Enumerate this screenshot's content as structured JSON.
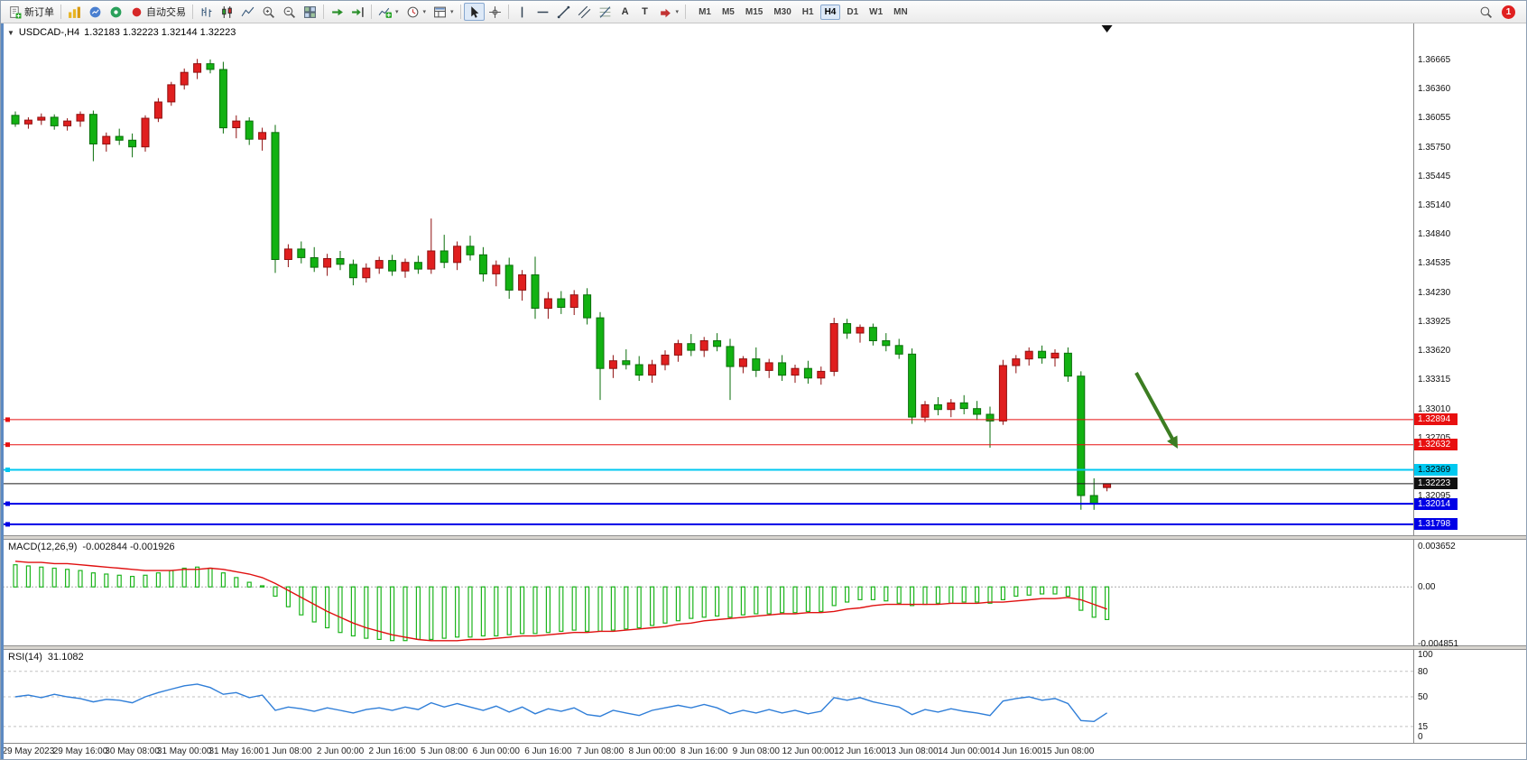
{
  "toolbar": {
    "new_order": "新订单",
    "autotrading": "自动交易",
    "text_tool": "A",
    "label_tool": "T",
    "timeframes": [
      "M1",
      "M5",
      "M15",
      "M30",
      "H1",
      "H4",
      "D1",
      "W1",
      "MN"
    ],
    "active_timeframe": "H4",
    "notification_count": "1"
  },
  "chart": {
    "symbol_label": "USDCAD-,H4",
    "ohlc_label": "1.32183 1.32223 1.32144 1.32223",
    "colors": {
      "bull": "#e01f1f",
      "bull_stroke": "#8f0f0f",
      "bear": "#12b212",
      "bear_stroke": "#0a6e0a",
      "macd_hist": "#1db51d",
      "macd_signal": "#e01010",
      "rsi": "#2f7ed8",
      "arrow": "#3c7d22",
      "level_red": "#e81010",
      "level_cyan": "#00c8f0",
      "level_blue": "#0000e6",
      "level_black": "#1a1a1a"
    },
    "levels": [
      {
        "label": "1.32894",
        "value": 1.32894,
        "color": "#e81010",
        "badge_bg": "#e81010",
        "badge_fg": "#ffffff",
        "thickness": 1,
        "handle": true
      },
      {
        "label": "1.32632",
        "value": 1.32632,
        "color": "#e81010",
        "badge_bg": "#e81010",
        "badge_fg": "#ffffff",
        "thickness": 1,
        "handle": true
      },
      {
        "label": "1.32369",
        "value": 1.32369,
        "color": "#00c8f0",
        "badge_bg": "#00c8f0",
        "badge_fg": "#000000",
        "thickness": 2,
        "handle": true
      },
      {
        "label": "1.32223",
        "value": 1.32223,
        "color": "#1a1a1a",
        "badge_bg": "#111111",
        "badge_fg": "#ffffff",
        "thickness": 1,
        "handle": false
      },
      {
        "label": "1.32014",
        "value": 1.32014,
        "color": "#0000e6",
        "badge_bg": "#0000e6",
        "badge_fg": "#ffffff",
        "thickness": 2,
        "handle": true
      },
      {
        "label": "1.31798",
        "value": 1.31798,
        "color": "#0000e6",
        "badge_bg": "#0000e6",
        "badge_fg": "#ffffff",
        "thickness": 2,
        "handle": true
      }
    ]
  },
  "chart_data": [
    {
      "type": "candlestick",
      "symbol": "USDCAD-",
      "period": "H4",
      "ylim": [
        1.3175,
        1.369
      ],
      "y_ticks": [
        "1.36665",
        "1.36360",
        "1.36055",
        "1.35750",
        "1.35445",
        "1.35140",
        "1.34840",
        "1.34535",
        "1.34230",
        "1.33925",
        "1.33620",
        "1.33315",
        "1.33010",
        "1.32705",
        "1.32095"
      ],
      "x_labels": [
        "29 May 2023",
        "29 May 16:00",
        "30 May 08:00",
        "31 May 00:00",
        "31 May 16:00",
        "1 Jun 08:00",
        "2 Jun 00:00",
        "2 Jun 16:00",
        "5 Jun 08:00",
        "6 Jun 00:00",
        "6 Jun 16:00",
        "7 Jun 08:00",
        "8 Jun 00:00",
        "8 Jun 16:00",
        "9 Jun 08:00",
        "12 Jun 00:00",
        "12 Jun 16:00",
        "13 Jun 08:00",
        "14 Jun 00:00",
        "14 Jun 16:00",
        "15 Jun 08:00"
      ],
      "x_label_first_bar": 1,
      "x_label_step": 4,
      "ohlc": [
        [
          1.3608,
          1.3612,
          1.3596,
          1.3599
        ],
        [
          1.3599,
          1.3606,
          1.3594,
          1.3603
        ],
        [
          1.3603,
          1.361,
          1.3598,
          1.3606
        ],
        [
          1.3606,
          1.3609,
          1.3593,
          1.3597
        ],
        [
          1.3597,
          1.3605,
          1.3592,
          1.3602
        ],
        [
          1.3602,
          1.3612,
          1.3596,
          1.3609
        ],
        [
          1.3609,
          1.3613,
          1.356,
          1.3578
        ],
        [
          1.3578,
          1.359,
          1.357,
          1.3586
        ],
        [
          1.3586,
          1.3594,
          1.3577,
          1.3582
        ],
        [
          1.3582,
          1.3589,
          1.3564,
          1.3575
        ],
        [
          1.3575,
          1.3608,
          1.357,
          1.3605
        ],
        [
          1.3605,
          1.3626,
          1.3601,
          1.3622
        ],
        [
          1.3622,
          1.3643,
          1.3618,
          1.364
        ],
        [
          1.364,
          1.3657,
          1.3635,
          1.3653
        ],
        [
          1.3653,
          1.3667,
          1.3646,
          1.3662
        ],
        [
          1.3662,
          1.36665,
          1.3652,
          1.3656
        ],
        [
          1.3656,
          1.3664,
          1.3589,
          1.3595
        ],
        [
          1.3595,
          1.3608,
          1.3584,
          1.3602
        ],
        [
          1.3602,
          1.3606,
          1.3577,
          1.3583
        ],
        [
          1.3583,
          1.3595,
          1.3571,
          1.359
        ],
        [
          1.359,
          1.3598,
          1.3443,
          1.3457
        ],
        [
          1.3457,
          1.3473,
          1.3449,
          1.3468
        ],
        [
          1.3468,
          1.3476,
          1.3453,
          1.3459
        ],
        [
          1.3459,
          1.347,
          1.3444,
          1.3449
        ],
        [
          1.3449,
          1.3463,
          1.344,
          1.3458
        ],
        [
          1.3458,
          1.3466,
          1.3446,
          1.3452
        ],
        [
          1.3452,
          1.3457,
          1.343,
          1.3438
        ],
        [
          1.3438,
          1.3453,
          1.3433,
          1.3448
        ],
        [
          1.3448,
          1.346,
          1.3442,
          1.3456
        ],
        [
          1.3456,
          1.3462,
          1.344,
          1.3445
        ],
        [
          1.3445,
          1.3458,
          1.3438,
          1.3454
        ],
        [
          1.3454,
          1.3461,
          1.3442,
          1.3447
        ],
        [
          1.3447,
          1.35,
          1.3442,
          1.3466
        ],
        [
          1.3466,
          1.3483,
          1.3448,
          1.3454
        ],
        [
          1.3454,
          1.3476,
          1.3446,
          1.3471
        ],
        [
          1.3471,
          1.3482,
          1.3456,
          1.3462
        ],
        [
          1.3462,
          1.347,
          1.3434,
          1.3442
        ],
        [
          1.3442,
          1.3456,
          1.3429,
          1.3451
        ],
        [
          1.3451,
          1.3459,
          1.3416,
          1.3425
        ],
        [
          1.3425,
          1.3446,
          1.3414,
          1.3441
        ],
        [
          1.3441,
          1.346,
          1.3395,
          1.3406
        ],
        [
          1.3406,
          1.3423,
          1.3395,
          1.3416
        ],
        [
          1.3416,
          1.3424,
          1.34,
          1.3407
        ],
        [
          1.3407,
          1.3425,
          1.3399,
          1.342
        ],
        [
          1.342,
          1.3427,
          1.3389,
          1.3396
        ],
        [
          1.3396,
          1.3402,
          1.331,
          1.3343
        ],
        [
          1.3343,
          1.3357,
          1.3333,
          1.3351
        ],
        [
          1.3351,
          1.3363,
          1.3342,
          1.3347
        ],
        [
          1.3347,
          1.3356,
          1.333,
          1.3336
        ],
        [
          1.3336,
          1.3352,
          1.3328,
          1.3347
        ],
        [
          1.3347,
          1.3362,
          1.3341,
          1.3357
        ],
        [
          1.3357,
          1.3373,
          1.335,
          1.3369
        ],
        [
          1.3369,
          1.3379,
          1.3356,
          1.3362
        ],
        [
          1.3362,
          1.3376,
          1.3355,
          1.3372
        ],
        [
          1.3372,
          1.338,
          1.3361,
          1.3366
        ],
        [
          1.3366,
          1.3374,
          1.331,
          1.3345
        ],
        [
          1.3345,
          1.3356,
          1.3338,
          1.3353
        ],
        [
          1.3353,
          1.3365,
          1.3334,
          1.3341
        ],
        [
          1.3341,
          1.3353,
          1.3333,
          1.3349
        ],
        [
          1.3349,
          1.3357,
          1.333,
          1.3336
        ],
        [
          1.3336,
          1.3347,
          1.3328,
          1.3343
        ],
        [
          1.3343,
          1.3351,
          1.3327,
          1.3333
        ],
        [
          1.3333,
          1.3345,
          1.3326,
          1.334
        ],
        [
          1.334,
          1.3396,
          1.3335,
          1.339
        ],
        [
          1.339,
          1.3395,
          1.3374,
          1.338
        ],
        [
          1.338,
          1.3389,
          1.337,
          1.3386
        ],
        [
          1.3386,
          1.339,
          1.3367,
          1.3372
        ],
        [
          1.3372,
          1.338,
          1.3361,
          1.3367
        ],
        [
          1.3367,
          1.3374,
          1.3353,
          1.3358
        ],
        [
          1.3358,
          1.3364,
          1.3285,
          1.3292
        ],
        [
          1.3292,
          1.3309,
          1.3287,
          1.3305
        ],
        [
          1.3305,
          1.3313,
          1.3294,
          1.33
        ],
        [
          1.33,
          1.3311,
          1.3292,
          1.3307
        ],
        [
          1.3307,
          1.3315,
          1.3295,
          1.3301
        ],
        [
          1.3301,
          1.3309,
          1.3289,
          1.3295
        ],
        [
          1.3295,
          1.3303,
          1.326,
          1.3288
        ],
        [
          1.3288,
          1.3352,
          1.3284,
          1.3346
        ],
        [
          1.3346,
          1.3357,
          1.3338,
          1.3353
        ],
        [
          1.3353,
          1.3365,
          1.3346,
          1.3361
        ],
        [
          1.3361,
          1.3367,
          1.3348,
          1.3354
        ],
        [
          1.3354,
          1.3363,
          1.3345,
          1.3359
        ],
        [
          1.3359,
          1.3365,
          1.3329,
          1.3335
        ],
        [
          1.3335,
          1.334,
          1.3195,
          1.321
        ],
        [
          1.321,
          1.3228,
          1.3195,
          1.3202
        ],
        [
          1.32183,
          1.32223,
          1.32144,
          1.32223
        ]
      ]
    },
    {
      "type": "macd",
      "name": "MACD(12,26,9)",
      "current_values": "-0.002844 -0.001926",
      "ylim": [
        -0.004851,
        0.003652
      ],
      "y_ticks": [
        "0.003652",
        "0.00",
        "-0.004851"
      ],
      "histogram": [
        0.0019,
        0.0018,
        0.0017,
        0.0016,
        0.0015,
        0.0014,
        0.0012,
        0.0011,
        0.001,
        0.0009,
        0.001,
        0.0012,
        0.0014,
        0.0016,
        0.0017,
        0.0016,
        0.0012,
        0.0008,
        0.0004,
        0.0001,
        -0.0008,
        -0.0017,
        -0.0024,
        -0.003,
        -0.0035,
        -0.0039,
        -0.0042,
        -0.0044,
        -0.0045,
        -0.0046,
        -0.0046,
        -0.0045,
        -0.0045,
        -0.0044,
        -0.0043,
        -0.0043,
        -0.0042,
        -0.0042,
        -0.0041,
        -0.004,
        -0.004,
        -0.0039,
        -0.0038,
        -0.0037,
        -0.0038,
        -0.0038,
        -0.0037,
        -0.0036,
        -0.0035,
        -0.0033,
        -0.0031,
        -0.0029,
        -0.0027,
        -0.0026,
        -0.0025,
        -0.0026,
        -0.0024,
        -0.0023,
        -0.0023,
        -0.0022,
        -0.0022,
        -0.0021,
        -0.0021,
        -0.0016,
        -0.0013,
        -0.0011,
        -0.0011,
        -0.0012,
        -0.0014,
        -0.0016,
        -0.0015,
        -0.0014,
        -0.0014,
        -0.0013,
        -0.0013,
        -0.0014,
        -0.0011,
        -0.0008,
        -0.0007,
        -0.0006,
        -0.0006,
        -0.0008,
        -0.002,
        -0.0026,
        -0.0028
      ],
      "signal": [
        0.0022,
        0.0021,
        0.0021,
        0.002,
        0.002,
        0.0019,
        0.0018,
        0.0017,
        0.0016,
        0.0015,
        0.0014,
        0.0014,
        0.0014,
        0.0015,
        0.0015,
        0.0016,
        0.0015,
        0.0013,
        0.0011,
        0.0008,
        0.0003,
        -0.0003,
        -0.0009,
        -0.0015,
        -0.0021,
        -0.0026,
        -0.0031,
        -0.0035,
        -0.0038,
        -0.0041,
        -0.0043,
        -0.0045,
        -0.0046,
        -0.0046,
        -0.0046,
        -0.0045,
        -0.0045,
        -0.0044,
        -0.0043,
        -0.0042,
        -0.0042,
        -0.0041,
        -0.004,
        -0.0039,
        -0.0039,
        -0.0038,
        -0.0038,
        -0.0037,
        -0.0036,
        -0.0035,
        -0.0034,
        -0.0032,
        -0.0031,
        -0.0029,
        -0.0028,
        -0.0027,
        -0.0026,
        -0.0025,
        -0.0024,
        -0.0023,
        -0.0023,
        -0.0022,
        -0.0022,
        -0.0021,
        -0.0019,
        -0.0018,
        -0.0016,
        -0.0015,
        -0.0015,
        -0.0015,
        -0.0015,
        -0.0015,
        -0.0014,
        -0.0014,
        -0.0014,
        -0.0013,
        -0.0013,
        -0.0012,
        -0.0011,
        -0.001,
        -0.001,
        -0.0009,
        -0.0011,
        -0.0015,
        -0.0019
      ]
    },
    {
      "type": "rsi",
      "name": "RSI(14)",
      "current_value": "31.1082",
      "ylim": [
        0,
        100
      ],
      "levels": [
        80,
        50,
        15
      ],
      "y_ticks": [
        "100",
        "80",
        "50",
        "15",
        "0"
      ],
      "values": [
        50,
        52,
        49,
        53,
        50,
        48,
        44,
        47,
        46,
        43,
        50,
        55,
        59,
        63,
        65,
        61,
        53,
        55,
        49,
        52,
        34,
        38,
        36,
        33,
        37,
        34,
        31,
        35,
        37,
        34,
        38,
        35,
        43,
        38,
        42,
        38,
        34,
        39,
        32,
        38,
        30,
        36,
        33,
        37,
        29,
        27,
        34,
        31,
        28,
        34,
        37,
        40,
        37,
        41,
        37,
        30,
        34,
        31,
        35,
        31,
        34,
        30,
        33,
        49,
        46,
        49,
        44,
        41,
        38,
        29,
        35,
        32,
        36,
        33,
        31,
        28,
        45,
        48,
        50,
        46,
        48,
        42,
        22,
        21,
        31.1
      ]
    }
  ]
}
